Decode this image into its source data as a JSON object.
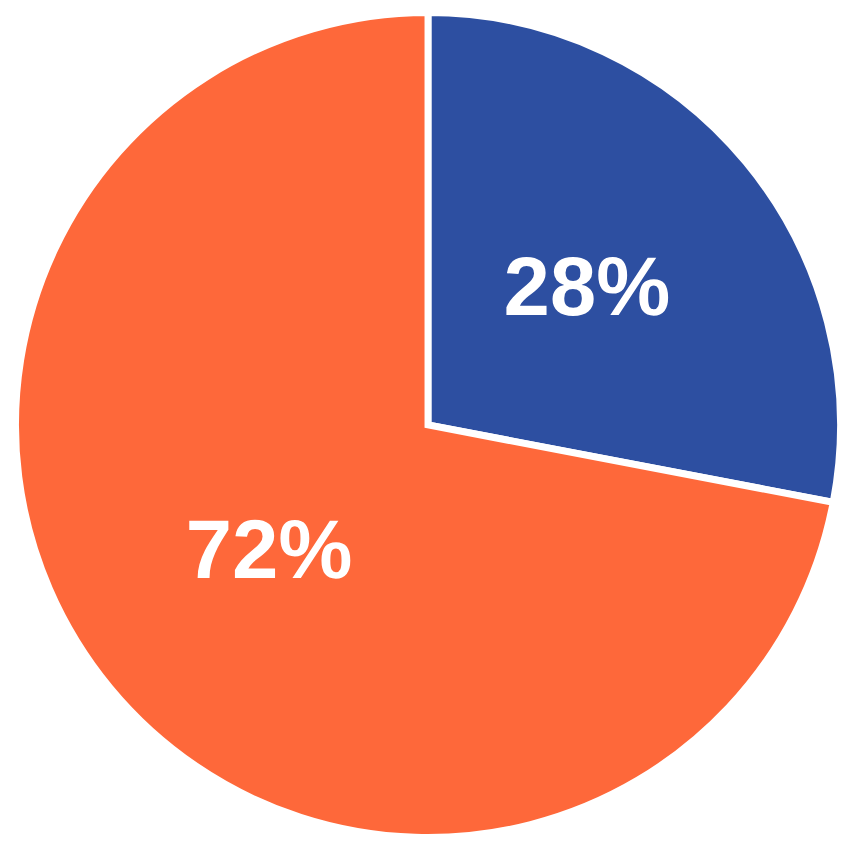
{
  "chart_data": {
    "type": "pie",
    "categories": [
      null,
      null
    ],
    "values": [
      28,
      72
    ],
    "value_labels": [
      "28%",
      "72%"
    ],
    "colors": [
      "#2d4fa1",
      "#fe683a"
    ]
  }
}
